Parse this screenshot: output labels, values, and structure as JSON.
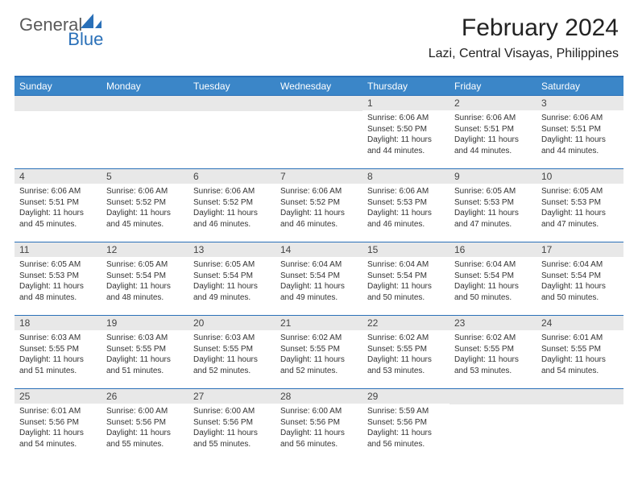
{
  "brand": {
    "general": "General",
    "blue": "Blue"
  },
  "title": "February 2024",
  "location": "Lazi, Central Visayas, Philippines",
  "colors": {
    "accent": "#3b86c8",
    "rule": "#2a70b8",
    "dayBar": "#e8e8e8",
    "text": "#333333",
    "bg": "#ffffff"
  },
  "weekdays": [
    "Sunday",
    "Monday",
    "Tuesday",
    "Wednesday",
    "Thursday",
    "Friday",
    "Saturday"
  ],
  "weeks": [
    [
      {
        "n": "",
        "sr": "",
        "ss": "",
        "dl": ""
      },
      {
        "n": "",
        "sr": "",
        "ss": "",
        "dl": ""
      },
      {
        "n": "",
        "sr": "",
        "ss": "",
        "dl": ""
      },
      {
        "n": "",
        "sr": "",
        "ss": "",
        "dl": ""
      },
      {
        "n": "1",
        "sr": "Sunrise: 6:06 AM",
        "ss": "Sunset: 5:50 PM",
        "dl": "Daylight: 11 hours and 44 minutes."
      },
      {
        "n": "2",
        "sr": "Sunrise: 6:06 AM",
        "ss": "Sunset: 5:51 PM",
        "dl": "Daylight: 11 hours and 44 minutes."
      },
      {
        "n": "3",
        "sr": "Sunrise: 6:06 AM",
        "ss": "Sunset: 5:51 PM",
        "dl": "Daylight: 11 hours and 44 minutes."
      }
    ],
    [
      {
        "n": "4",
        "sr": "Sunrise: 6:06 AM",
        "ss": "Sunset: 5:51 PM",
        "dl": "Daylight: 11 hours and 45 minutes."
      },
      {
        "n": "5",
        "sr": "Sunrise: 6:06 AM",
        "ss": "Sunset: 5:52 PM",
        "dl": "Daylight: 11 hours and 45 minutes."
      },
      {
        "n": "6",
        "sr": "Sunrise: 6:06 AM",
        "ss": "Sunset: 5:52 PM",
        "dl": "Daylight: 11 hours and 46 minutes."
      },
      {
        "n": "7",
        "sr": "Sunrise: 6:06 AM",
        "ss": "Sunset: 5:52 PM",
        "dl": "Daylight: 11 hours and 46 minutes."
      },
      {
        "n": "8",
        "sr": "Sunrise: 6:06 AM",
        "ss": "Sunset: 5:53 PM",
        "dl": "Daylight: 11 hours and 46 minutes."
      },
      {
        "n": "9",
        "sr": "Sunrise: 6:05 AM",
        "ss": "Sunset: 5:53 PM",
        "dl": "Daylight: 11 hours and 47 minutes."
      },
      {
        "n": "10",
        "sr": "Sunrise: 6:05 AM",
        "ss": "Sunset: 5:53 PM",
        "dl": "Daylight: 11 hours and 47 minutes."
      }
    ],
    [
      {
        "n": "11",
        "sr": "Sunrise: 6:05 AM",
        "ss": "Sunset: 5:53 PM",
        "dl": "Daylight: 11 hours and 48 minutes."
      },
      {
        "n": "12",
        "sr": "Sunrise: 6:05 AM",
        "ss": "Sunset: 5:54 PM",
        "dl": "Daylight: 11 hours and 48 minutes."
      },
      {
        "n": "13",
        "sr": "Sunrise: 6:05 AM",
        "ss": "Sunset: 5:54 PM",
        "dl": "Daylight: 11 hours and 49 minutes."
      },
      {
        "n": "14",
        "sr": "Sunrise: 6:04 AM",
        "ss": "Sunset: 5:54 PM",
        "dl": "Daylight: 11 hours and 49 minutes."
      },
      {
        "n": "15",
        "sr": "Sunrise: 6:04 AM",
        "ss": "Sunset: 5:54 PM",
        "dl": "Daylight: 11 hours and 50 minutes."
      },
      {
        "n": "16",
        "sr": "Sunrise: 6:04 AM",
        "ss": "Sunset: 5:54 PM",
        "dl": "Daylight: 11 hours and 50 minutes."
      },
      {
        "n": "17",
        "sr": "Sunrise: 6:04 AM",
        "ss": "Sunset: 5:54 PM",
        "dl": "Daylight: 11 hours and 50 minutes."
      }
    ],
    [
      {
        "n": "18",
        "sr": "Sunrise: 6:03 AM",
        "ss": "Sunset: 5:55 PM",
        "dl": "Daylight: 11 hours and 51 minutes."
      },
      {
        "n": "19",
        "sr": "Sunrise: 6:03 AM",
        "ss": "Sunset: 5:55 PM",
        "dl": "Daylight: 11 hours and 51 minutes."
      },
      {
        "n": "20",
        "sr": "Sunrise: 6:03 AM",
        "ss": "Sunset: 5:55 PM",
        "dl": "Daylight: 11 hours and 52 minutes."
      },
      {
        "n": "21",
        "sr": "Sunrise: 6:02 AM",
        "ss": "Sunset: 5:55 PM",
        "dl": "Daylight: 11 hours and 52 minutes."
      },
      {
        "n": "22",
        "sr": "Sunrise: 6:02 AM",
        "ss": "Sunset: 5:55 PM",
        "dl": "Daylight: 11 hours and 53 minutes."
      },
      {
        "n": "23",
        "sr": "Sunrise: 6:02 AM",
        "ss": "Sunset: 5:55 PM",
        "dl": "Daylight: 11 hours and 53 minutes."
      },
      {
        "n": "24",
        "sr": "Sunrise: 6:01 AM",
        "ss": "Sunset: 5:55 PM",
        "dl": "Daylight: 11 hours and 54 minutes."
      }
    ],
    [
      {
        "n": "25",
        "sr": "Sunrise: 6:01 AM",
        "ss": "Sunset: 5:56 PM",
        "dl": "Daylight: 11 hours and 54 minutes."
      },
      {
        "n": "26",
        "sr": "Sunrise: 6:00 AM",
        "ss": "Sunset: 5:56 PM",
        "dl": "Daylight: 11 hours and 55 minutes."
      },
      {
        "n": "27",
        "sr": "Sunrise: 6:00 AM",
        "ss": "Sunset: 5:56 PM",
        "dl": "Daylight: 11 hours and 55 minutes."
      },
      {
        "n": "28",
        "sr": "Sunrise: 6:00 AM",
        "ss": "Sunset: 5:56 PM",
        "dl": "Daylight: 11 hours and 56 minutes."
      },
      {
        "n": "29",
        "sr": "Sunrise: 5:59 AM",
        "ss": "Sunset: 5:56 PM",
        "dl": "Daylight: 11 hours and 56 minutes."
      },
      {
        "n": "",
        "sr": "",
        "ss": "",
        "dl": ""
      },
      {
        "n": "",
        "sr": "",
        "ss": "",
        "dl": ""
      }
    ]
  ]
}
